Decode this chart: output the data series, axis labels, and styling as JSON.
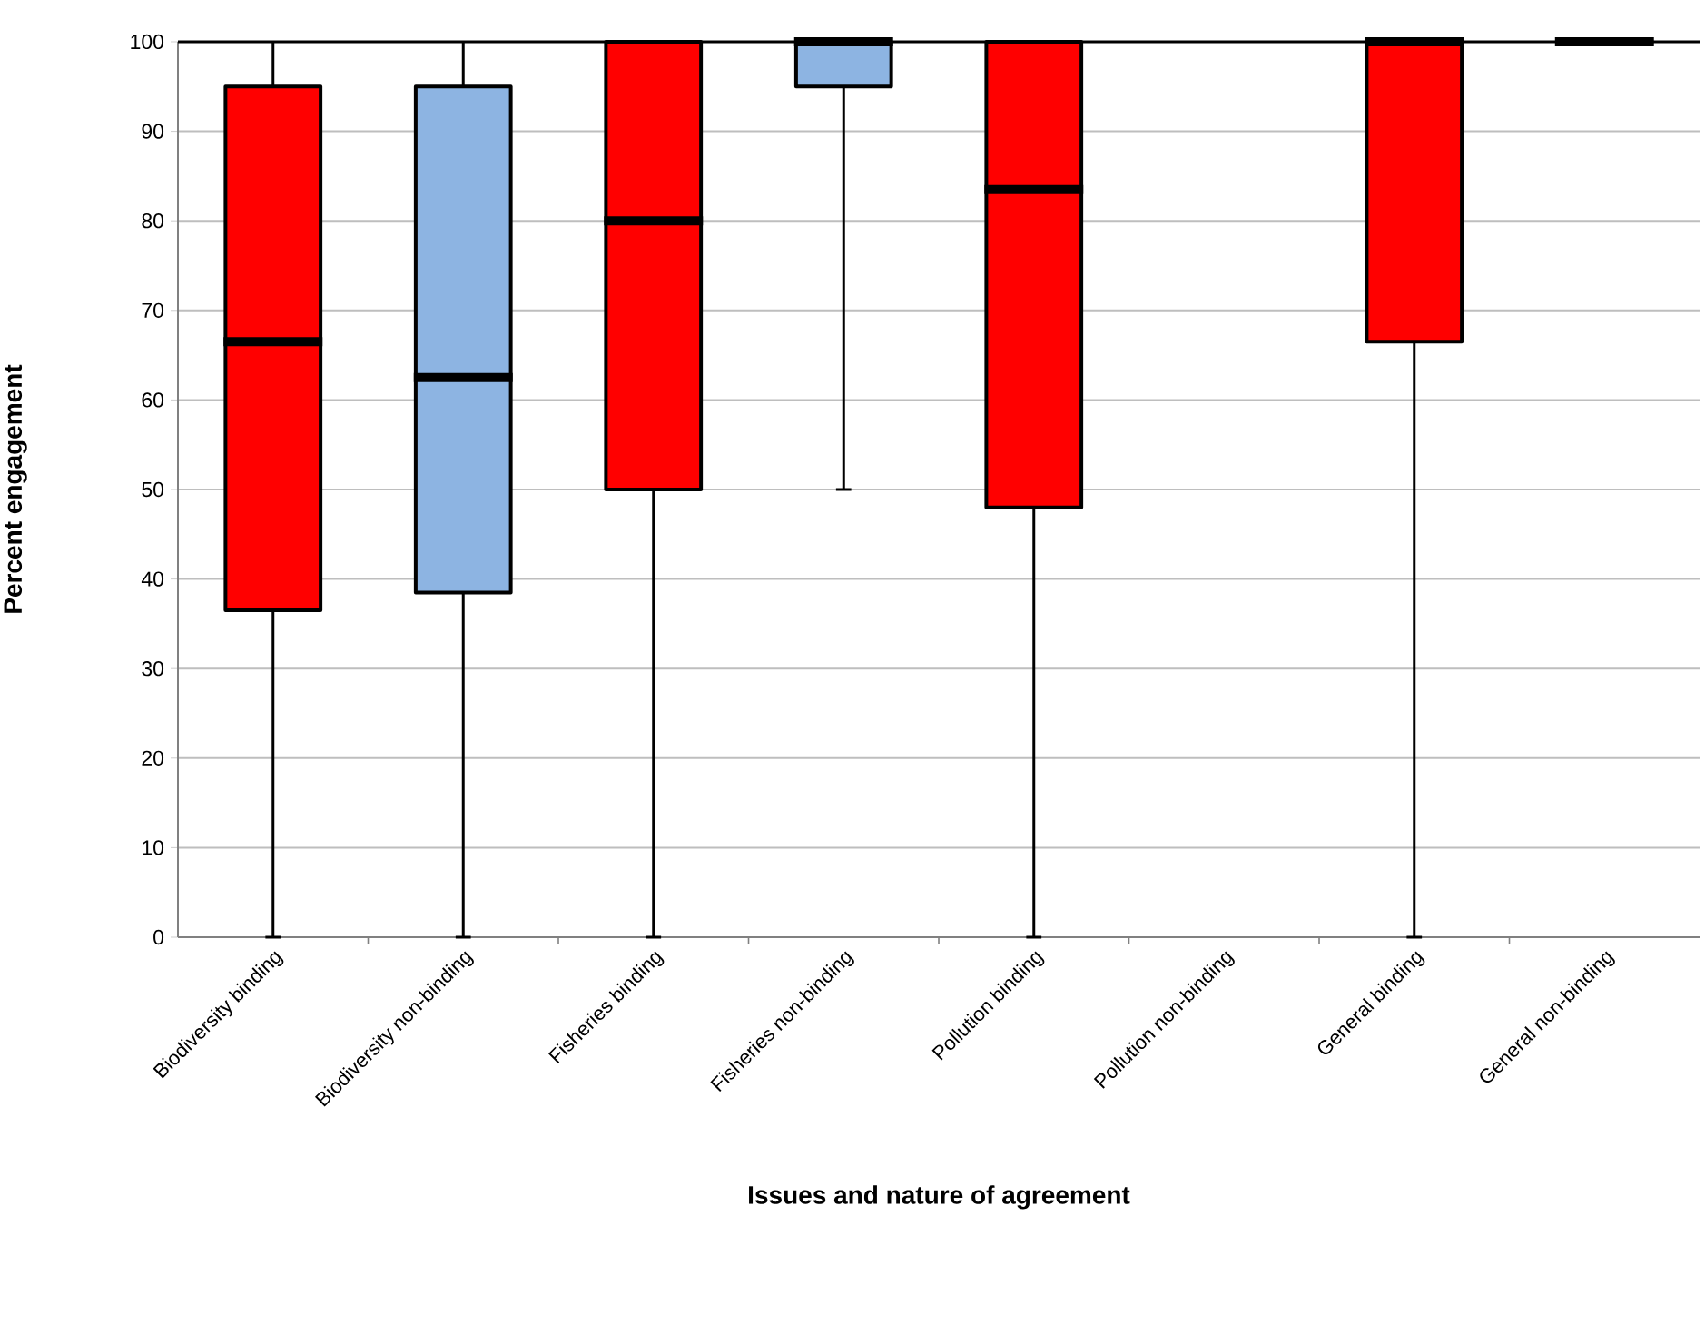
{
  "chart_data": {
    "type": "box",
    "xlabel": "Issues and nature of agreement",
    "ylabel": "Percent engagement",
    "categories": [
      "Biodiversity binding",
      "Biodiversity non-binding",
      "Fisheries binding",
      "Fisheries non-binding",
      "Pollution binding",
      "Pollution non-binding",
      "General binding",
      "General non-binding"
    ],
    "boxes": [
      {
        "low": 0,
        "q1": 36.5,
        "median": 66.5,
        "q3": 95,
        "high": 100
      },
      {
        "low": 0,
        "q1": 38.5,
        "median": 62.5,
        "q3": 95,
        "high": 100
      },
      {
        "low": 0,
        "q1": 50,
        "median": 80,
        "q3": 100,
        "high": 100
      },
      {
        "low": 50,
        "q1": 95,
        "median": 100,
        "q3": 100,
        "high": 100
      },
      {
        "low": 0,
        "q1": 48,
        "median": 83.5,
        "q3": 100,
        "high": 100
      },
      null,
      {
        "low": 0,
        "q1": 66.5,
        "median": 100,
        "q3": 100,
        "high": 100
      },
      {
        "low": 100,
        "q1": 100,
        "median": 100,
        "q3": 100,
        "high": 100
      }
    ],
    "colors": [
      "#ff0000",
      "#8db4e2",
      "#ff0000",
      "#8db4e2",
      "#ff0000",
      null,
      "#ff0000",
      null
    ],
    "ylim": [
      0,
      100
    ],
    "yticks": [
      0,
      10,
      20,
      30,
      40,
      50,
      60,
      70,
      80,
      90,
      100
    ],
    "grid": "y"
  }
}
